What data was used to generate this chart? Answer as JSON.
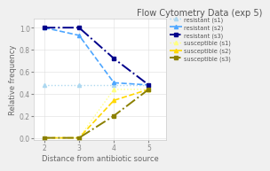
{
  "title": "Flow Cytometry Data (exp 5)",
  "xlabel": "Distance from antibiotic source",
  "ylabel": "Relative frequency",
  "x": [
    2,
    3,
    4,
    5
  ],
  "series": [
    {
      "label": "resistant (s1)",
      "color": "#add8f0",
      "linestyle": "dotted",
      "marker": "^",
      "markersize": 3,
      "linewidth": 1.0,
      "values": [
        0.48,
        0.48,
        0.48,
        0.48
      ]
    },
    {
      "label": "resistant (s2)",
      "color": "#4da6ff",
      "linestyle": "dashed",
      "marker": "^",
      "markersize": 3,
      "linewidth": 1.2,
      "values": [
        1.0,
        0.93,
        0.5,
        0.48
      ]
    },
    {
      "label": "resistant (s3)",
      "color": "#00008b",
      "linestyle": "dashdot",
      "marker": "s",
      "markersize": 3,
      "linewidth": 1.4,
      "values": [
        1.0,
        1.0,
        0.72,
        0.48
      ]
    },
    {
      "label": "susceptible (s1)",
      "color": "#ffff80",
      "linestyle": "dotted",
      "marker": "^",
      "markersize": 3,
      "linewidth": 1.0,
      "values": [
        0.0,
        0.0,
        0.44,
        0.44
      ]
    },
    {
      "label": "susceptible (s2)",
      "color": "#ffd700",
      "linestyle": "dashed",
      "marker": "^",
      "markersize": 3,
      "linewidth": 1.2,
      "values": [
        0.0,
        0.0,
        0.34,
        0.44
      ]
    },
    {
      "label": "susceptible (s3)",
      "color": "#8b8000",
      "linestyle": "dashdot",
      "marker": "s",
      "markersize": 3,
      "linewidth": 1.4,
      "values": [
        0.0,
        0.0,
        0.2,
        0.44
      ]
    }
  ],
  "xlim": [
    1.7,
    5.5
  ],
  "ylim": [
    -0.02,
    1.08
  ],
  "xticks": [
    2,
    3,
    4,
    5
  ],
  "yticks": [
    0.0,
    0.2,
    0.4,
    0.6,
    0.8,
    1.0
  ],
  "bg_color": "#f0f0f0",
  "plot_bg": "#ffffff",
  "title_fontsize": 7,
  "label_fontsize": 6,
  "tick_fontsize": 5.5,
  "legend_fontsize": 4.8
}
